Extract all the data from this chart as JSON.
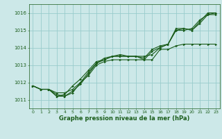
{
  "title": "Graphe pression niveau de la mer (hPa)",
  "background_color": "#cce8e8",
  "grid_color": "#99cccc",
  "line_color": "#1a5c1a",
  "ylim": [
    1010.5,
    1016.5
  ],
  "xlim": [
    -0.5,
    23.5
  ],
  "yticks": [
    1011,
    1012,
    1013,
    1014,
    1015,
    1016
  ],
  "xticks": [
    0,
    1,
    2,
    3,
    4,
    5,
    6,
    7,
    8,
    9,
    10,
    11,
    12,
    13,
    14,
    15,
    16,
    17,
    18,
    19,
    20,
    21,
    22,
    23
  ],
  "lines": [
    [
      1011.8,
      1011.6,
      1011.6,
      1011.2,
      1011.2,
      1011.5,
      1011.9,
      1012.5,
      1013.1,
      1013.3,
      1013.5,
      1013.5,
      1013.5,
      1013.5,
      1013.4,
      1013.9,
      1014.1,
      1014.2,
      1015.1,
      1015.1,
      1015.0,
      1015.5,
      1016.0,
      1016.0
    ],
    [
      1011.8,
      1011.6,
      1011.6,
      1011.3,
      1011.2,
      1011.4,
      1012.0,
      1012.6,
      1013.1,
      1013.4,
      1013.5,
      1013.6,
      1013.5,
      1013.5,
      1013.3,
      1013.8,
      1014.0,
      1014.2,
      1015.0,
      1015.0,
      1015.1,
      1015.6,
      1015.9,
      1015.9
    ],
    [
      1011.8,
      1011.6,
      1011.6,
      1011.2,
      1011.3,
      1011.8,
      1012.2,
      1012.7,
      1013.2,
      1013.3,
      1013.5,
      1013.5,
      1013.5,
      1013.5,
      1013.5,
      1013.6,
      1014.0,
      1014.2,
      1015.0,
      1015.1,
      1015.0,
      1015.4,
      1015.9,
      1016.0
    ],
    [
      1011.8,
      1011.6,
      1011.6,
      1011.4,
      1011.4,
      1011.6,
      1012.0,
      1012.4,
      1013.0,
      1013.2,
      1013.3,
      1013.3,
      1013.3,
      1013.3,
      1013.3,
      1013.3,
      1013.9,
      1013.9,
      1014.1,
      1014.2,
      1014.2,
      1014.2,
      1014.2,
      1014.2
    ]
  ]
}
